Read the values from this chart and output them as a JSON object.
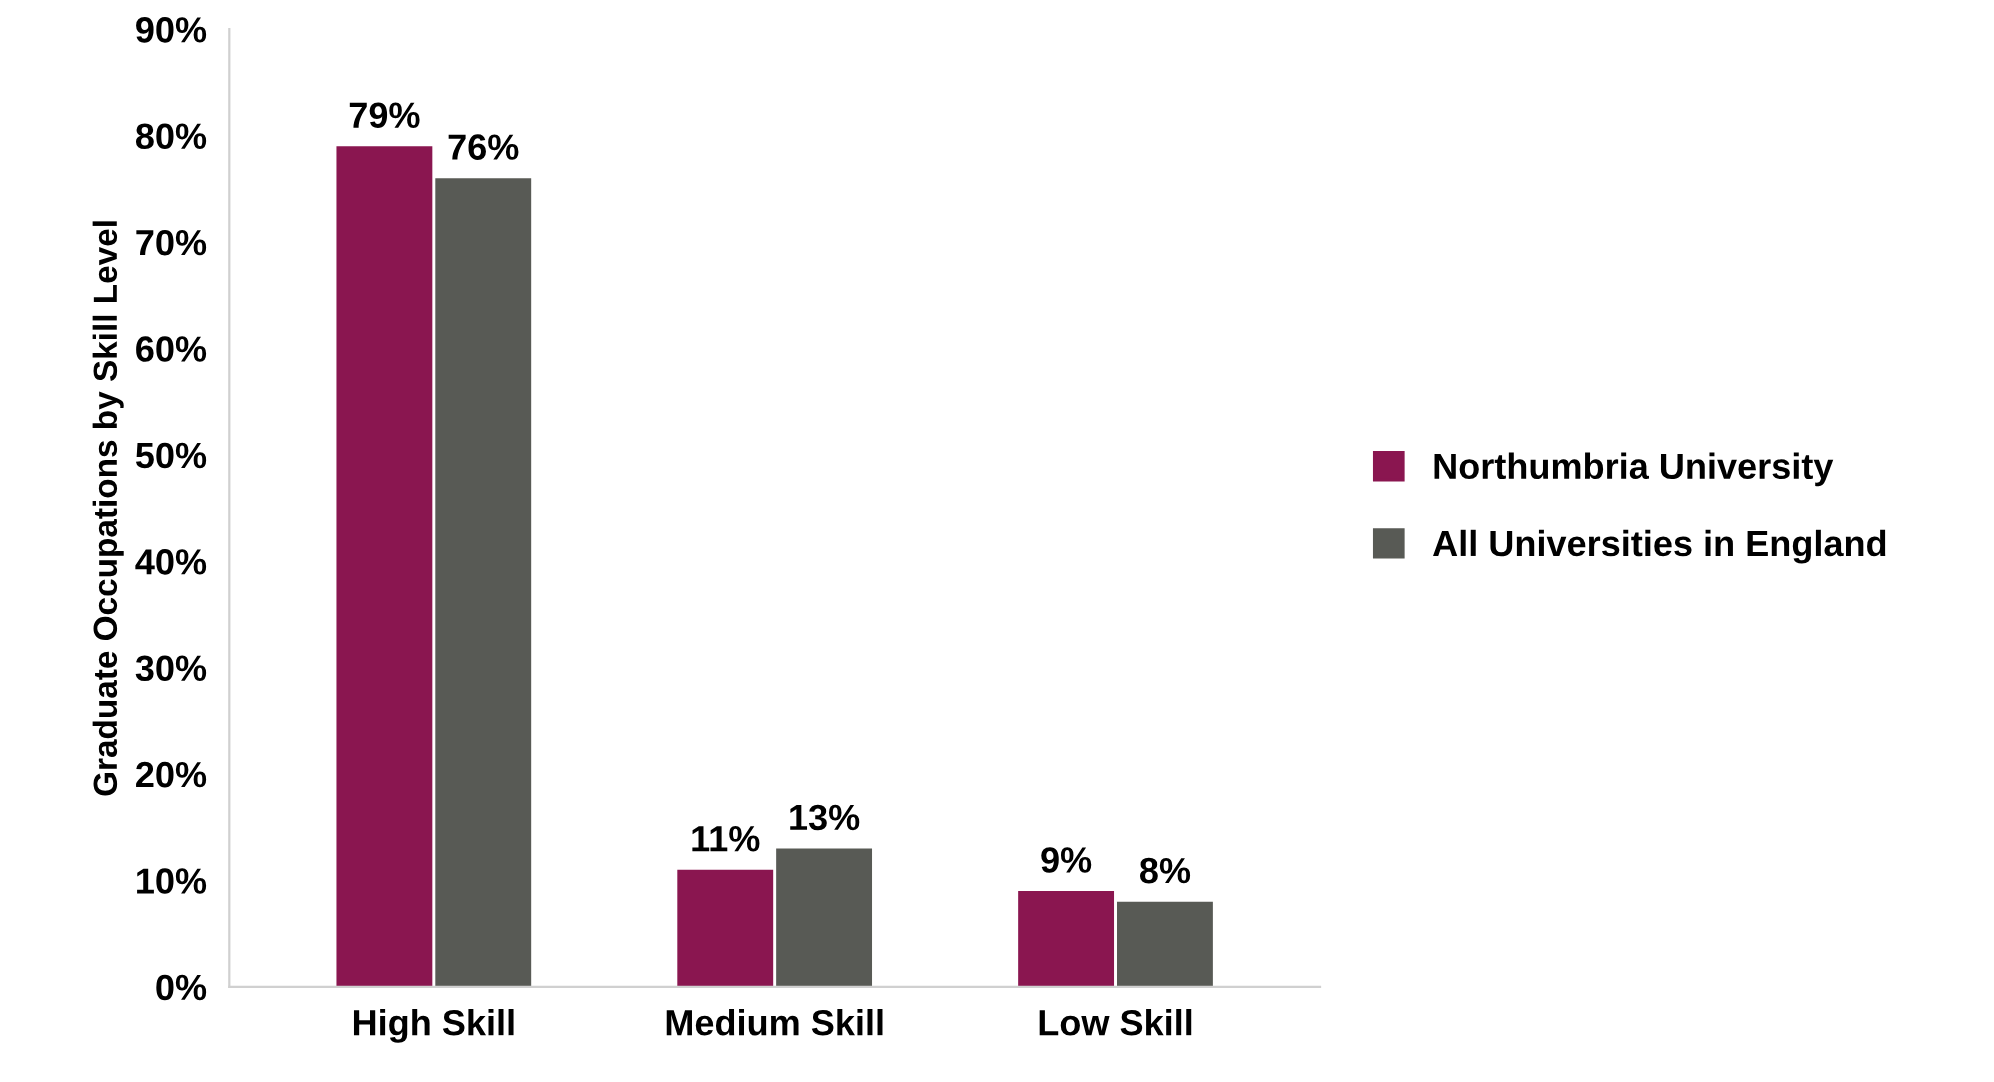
{
  "chart_data": {
    "type": "bar",
    "ylabel": "Graduate Occupations by Skill Level",
    "categories": [
      "High Skill",
      "Medium Skill",
      "Low Skill"
    ],
    "series": [
      {
        "name": "Northumbria University",
        "color": "#8a1650",
        "values": [
          79,
          11,
          9
        ],
        "value_labels": [
          "79%",
          "11%",
          "9%"
        ]
      },
      {
        "name": "All Universities in England",
        "color": "#585a55",
        "values": [
          76,
          13,
          8
        ],
        "value_labels": [
          "76%",
          "13%",
          "8%"
        ]
      }
    ],
    "ylim": [
      0,
      90
    ],
    "yticks": [
      {
        "value": 0,
        "label": "0%"
      },
      {
        "value": 10,
        "label": "10%"
      },
      {
        "value": 20,
        "label": "20%"
      },
      {
        "value": 30,
        "label": "30%"
      },
      {
        "value": 40,
        "label": "40%"
      },
      {
        "value": 50,
        "label": "50%"
      },
      {
        "value": 60,
        "label": "60%"
      },
      {
        "value": 70,
        "label": "70%"
      },
      {
        "value": 80,
        "label": "80%"
      },
      {
        "value": 90,
        "label": "90%"
      }
    ],
    "grid": false,
    "legend": "right"
  }
}
